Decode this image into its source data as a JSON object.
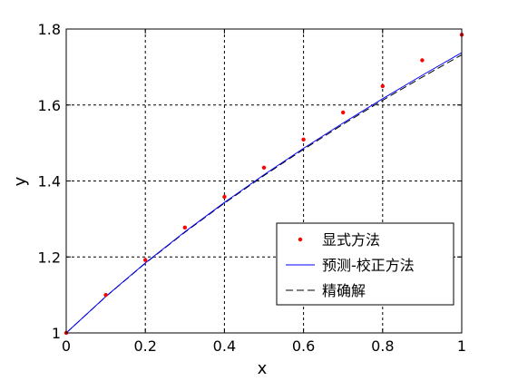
{
  "chart_data": {
    "type": "line",
    "xlabel": "x",
    "ylabel": "y",
    "xlim": [
      0,
      1
    ],
    "ylim": [
      1,
      1.8
    ],
    "x_ticks": [
      "0",
      "0.2",
      "0.4",
      "0.6",
      "0.8",
      "1"
    ],
    "y_ticks": [
      "1",
      "1.2",
      "1.4",
      "1.6",
      "1.8"
    ],
    "grid": true,
    "legend_position": "lower-right",
    "series": [
      {
        "name": "显式方法",
        "style": "markers",
        "color": "#ff0000",
        "x": [
          0,
          0.1,
          0.2,
          0.3,
          0.4,
          0.5,
          0.6,
          0.7,
          0.8,
          0.9,
          1.0
        ],
        "y": [
          1.0,
          1.1,
          1.1918,
          1.2774,
          1.3582,
          1.4351,
          1.509,
          1.5803,
          1.6498,
          1.7178,
          1.7848
        ]
      },
      {
        "name": "预测-校正方法",
        "style": "solid",
        "color": "#0000ff",
        "x": [
          0,
          0.1,
          0.2,
          0.3,
          0.4,
          0.5,
          0.6,
          0.7,
          0.8,
          0.9,
          1.0
        ],
        "y": [
          1.0,
          1.0959,
          1.1841,
          1.2662,
          1.3434,
          1.4164,
          1.486,
          1.5525,
          1.6165,
          1.6782,
          1.7379
        ]
      },
      {
        "name": "精确解",
        "style": "dashed",
        "color": "#000000",
        "x": [
          0,
          0.1,
          0.2,
          0.3,
          0.4,
          0.5,
          0.6,
          0.7,
          0.8,
          0.9,
          1.0
        ],
        "y": [
          1.0,
          1.0954,
          1.1832,
          1.2649,
          1.3416,
          1.4142,
          1.4832,
          1.5492,
          1.6125,
          1.6733,
          1.7321
        ]
      }
    ]
  }
}
